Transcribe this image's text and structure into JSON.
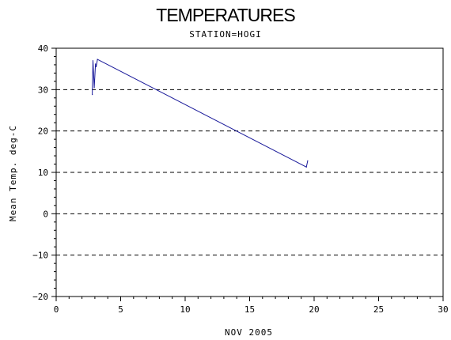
{
  "chart_data": {
    "type": "line",
    "title": "TEMPERATURES",
    "subtitle": "STATION=HOGI",
    "xlabel": "NOV 2005",
    "ylabel": "Mean Temp. deg-C",
    "xlim": [
      0,
      30
    ],
    "ylim": [
      -20,
      40
    ],
    "x_ticks": [
      0,
      5,
      10,
      15,
      20,
      25,
      30
    ],
    "y_ticks": [
      -20,
      -10,
      0,
      10,
      20,
      30,
      40
    ],
    "grid": "horizontal dashed",
    "series": [
      {
        "color": "#1a1a9a",
        "points": [
          [
            2.8,
            28.8
          ],
          [
            2.85,
            37.0
          ],
          [
            2.95,
            30.5
          ],
          [
            3.05,
            36.2
          ],
          [
            3.1,
            35.5
          ],
          [
            3.2,
            37.3
          ],
          [
            19.4,
            11.3
          ],
          [
            19.5,
            12.8
          ]
        ]
      }
    ]
  }
}
